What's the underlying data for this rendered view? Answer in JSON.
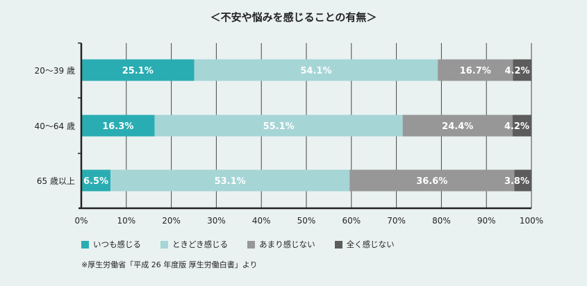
{
  "chart_data": {
    "type": "bar",
    "orientation": "horizontal",
    "stacked": true,
    "title": "＜不安や悩みを感じることの有無＞",
    "categories": [
      "20〜39 歳",
      "40〜64 歳",
      "65 歳以上"
    ],
    "series": [
      {
        "name": "いつも感じる",
        "color": "#2aadb2",
        "values": [
          25.1,
          16.3,
          6.5
        ]
      },
      {
        "name": "ときどき感じる",
        "color": "#a6d5d6",
        "values": [
          54.1,
          55.1,
          53.1
        ]
      },
      {
        "name": "あまり感じない",
        "color": "#979797",
        "values": [
          16.7,
          24.4,
          36.6
        ]
      },
      {
        "name": "全く感じない",
        "color": "#5c5c5c",
        "values": [
          4.2,
          4.2,
          3.8
        ]
      }
    ],
    "xlim": [
      0,
      100
    ],
    "xticks": [
      "0%",
      "10%",
      "20%",
      "30%",
      "40%",
      "50%",
      "60%",
      "70%",
      "80%",
      "90%",
      "100%"
    ],
    "grid": true,
    "legend_position": "bottom-left",
    "source_note": "※厚生労働省「平成 26 年度版 厚生労働白書」より"
  }
}
